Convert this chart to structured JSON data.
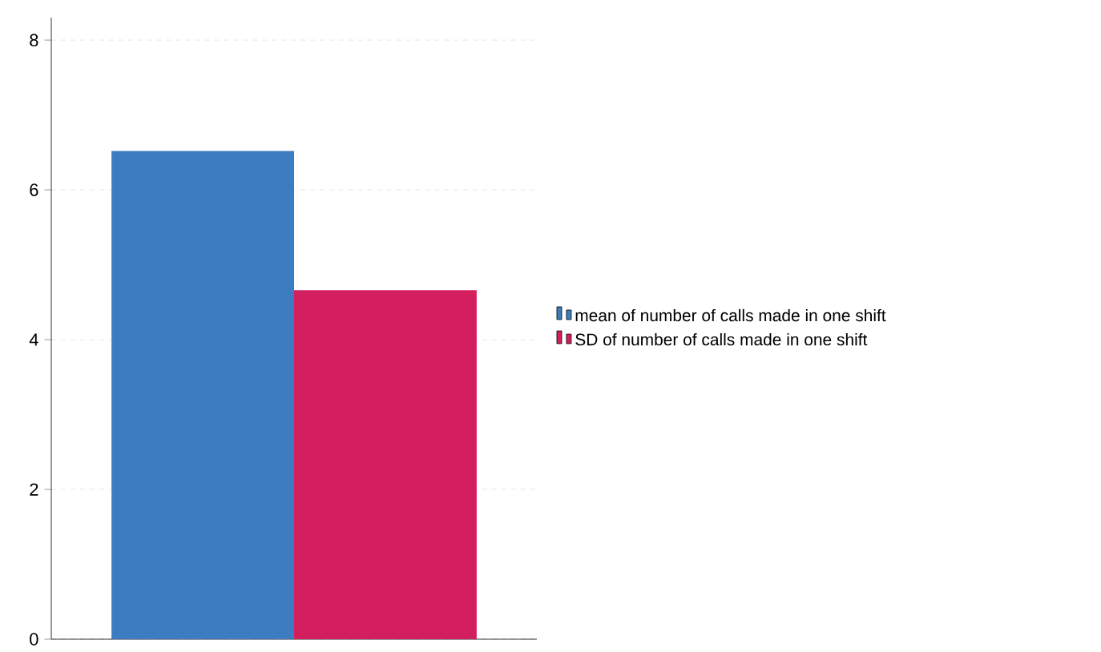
{
  "chart_data": {
    "type": "bar",
    "categories": [
      null
    ],
    "series": [
      {
        "name": "mean of number of calls made in one shift",
        "color": "#3e7cc1",
        "values": [
          6.52
        ]
      },
      {
        "name": "SD of number of calls made in one shift",
        "color": "#d41f5f",
        "values": [
          4.66
        ]
      }
    ],
    "ylim": [
      0,
      8.3
    ],
    "yticks": [
      0,
      2,
      4,
      6,
      8
    ],
    "grid": "y",
    "legend": "right"
  }
}
